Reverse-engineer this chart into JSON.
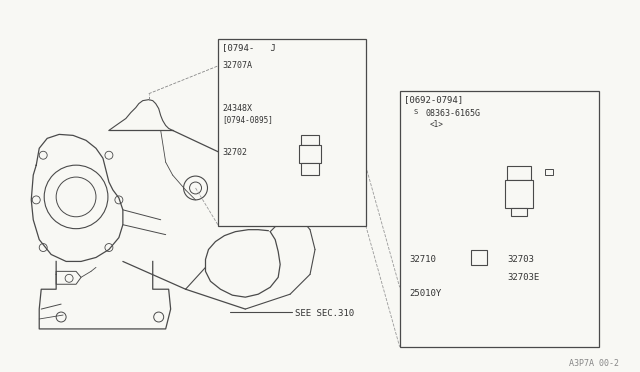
{
  "bg_color": "#f8f8f4",
  "line_color": "#4a4a4a",
  "text_color": "#333333",
  "watermark": "A3P7A 00-2",
  "box1_label": "[0794-   J",
  "box2_label": "[0692-0794]",
  "see_sec": "SEE SEC.310"
}
